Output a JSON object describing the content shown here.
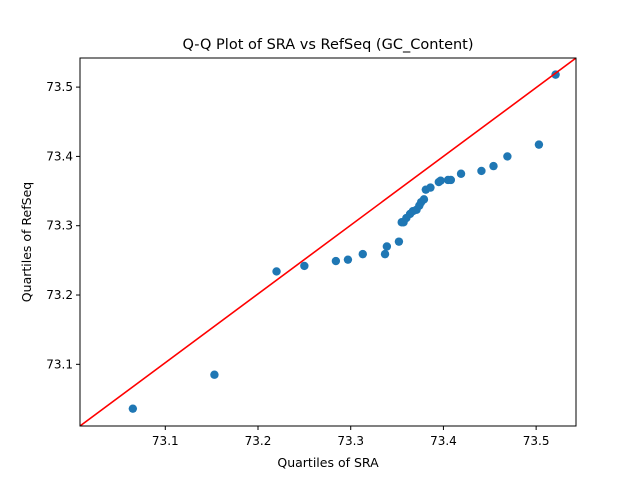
{
  "chart_data": {
    "type": "scatter",
    "title": "Q-Q Plot of SRA vs RefSeq (GC_Content)",
    "xlabel": "Quartiles of SRA",
    "ylabel": "Quartiles of RefSeq",
    "xlim": [
      73.008,
      73.543
    ],
    "ylim": [
      73.011,
      73.542
    ],
    "x_ticks": [
      73.1,
      73.2,
      73.3,
      73.4,
      73.5
    ],
    "x_tick_labels": [
      "73.1",
      "73.2",
      "73.3",
      "73.4",
      "73.5"
    ],
    "y_ticks": [
      73.1,
      73.2,
      73.3,
      73.4,
      73.5
    ],
    "y_tick_labels": [
      "73.1",
      "73.2",
      "73.3",
      "73.4",
      "73.5"
    ],
    "grid": false,
    "legend": "none",
    "point_color": "#1f77b4",
    "reference_line": {
      "color": "#ff0000",
      "from": [
        73.008,
        73.011
      ],
      "to": [
        73.543,
        73.542
      ]
    },
    "points": [
      [
        73.065,
        73.036
      ],
      [
        73.153,
        73.085
      ],
      [
        73.22,
        73.234
      ],
      [
        73.25,
        73.242
      ],
      [
        73.284,
        73.249
      ],
      [
        73.297,
        73.251
      ],
      [
        73.313,
        73.259
      ],
      [
        73.337,
        73.259
      ],
      [
        73.339,
        73.27
      ],
      [
        73.352,
        73.277
      ],
      [
        73.355,
        73.305
      ],
      [
        73.357,
        73.305
      ],
      [
        73.36,
        73.311
      ],
      [
        73.364,
        73.317
      ],
      [
        73.367,
        73.321
      ],
      [
        73.371,
        73.323
      ],
      [
        73.374,
        73.329
      ],
      [
        73.376,
        73.334
      ],
      [
        73.379,
        73.338
      ],
      [
        73.381,
        73.352
      ],
      [
        73.386,
        73.355
      ],
      [
        73.395,
        73.363
      ],
      [
        73.397,
        73.365
      ],
      [
        73.405,
        73.366
      ],
      [
        73.408,
        73.366
      ],
      [
        73.419,
        73.375
      ],
      [
        73.441,
        73.379
      ],
      [
        73.454,
        73.386
      ],
      [
        73.469,
        73.4
      ],
      [
        73.503,
        73.417
      ],
      [
        73.521,
        73.518
      ]
    ]
  }
}
